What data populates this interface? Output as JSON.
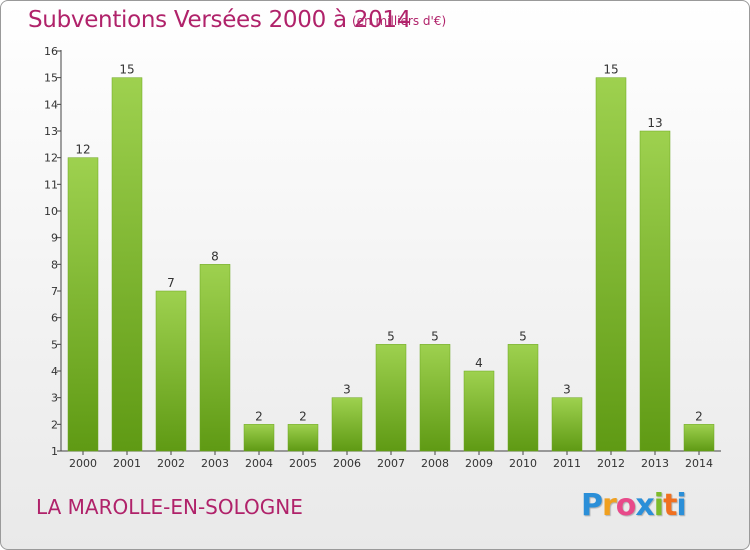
{
  "title": "Subventions Versées 2000 à 2014",
  "subtitle": "(en milliers d'€)",
  "commune": "LA MAROLLE-EN-SOLOGNE",
  "logo": {
    "letters": [
      "P",
      "r",
      "o",
      "x",
      "i",
      "t",
      "i"
    ],
    "colors": [
      "#2b8fd8",
      "#f0a020",
      "#e84a8a",
      "#2b8fd8",
      "#7dbb2a",
      "#f07020",
      "#2b8fd8"
    ]
  },
  "colors": {
    "bar_light": "#9ed14f",
    "bar_dark": "#5f9a14",
    "title": "#b0226a"
  },
  "chart_data": {
    "type": "bar",
    "categories": [
      "2000",
      "2001",
      "2002",
      "2003",
      "2004",
      "2005",
      "2006",
      "2007",
      "2008",
      "2009",
      "2010",
      "2011",
      "2012",
      "2013",
      "2014"
    ],
    "values": [
      12,
      15,
      7,
      8,
      2,
      2,
      3,
      5,
      5,
      4,
      5,
      3,
      15,
      13,
      2
    ],
    "title": "Subventions Versées 2000 à 2014",
    "subtitle": "(en milliers d'€)",
    "ylim": [
      1,
      16
    ],
    "yticks": [
      1,
      2,
      3,
      4,
      5,
      6,
      7,
      8,
      9,
      10,
      11,
      12,
      13,
      14,
      15,
      16
    ],
    "grid": false,
    "legend": "none"
  }
}
